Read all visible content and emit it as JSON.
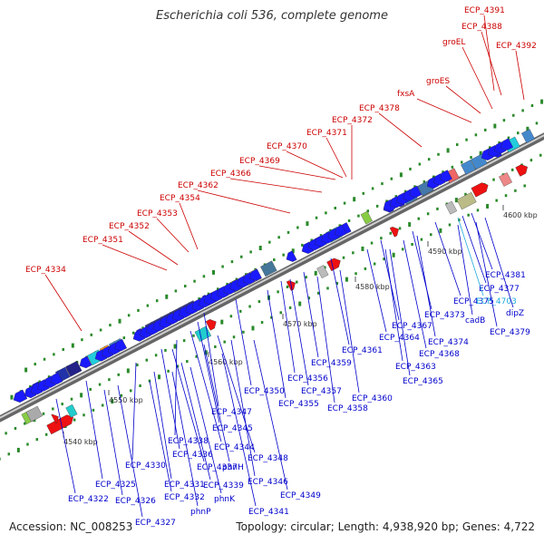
{
  "title": "Escherichia coli 536, complete genome",
  "footer": {
    "accession": "Accession: NC_008253",
    "topology": "Topology: circular; Length: 4,938,920 bp; Genes: 4,722"
  },
  "colors": {
    "forward_label": "#cc0000",
    "reverse_label": "#0000cc",
    "highlight_label": "#22aadd",
    "backbone": "#999999"
  },
  "ticks": [
    "4540 kbp",
    "4550 kbp",
    "4560 kbp",
    "4570 kbp",
    "4580 kbp",
    "4590 kbp",
    "4600 kbp"
  ],
  "forward_labels": [
    "ECP_4391",
    "ECP_4388",
    "ECP_4392",
    "groEL",
    "groES",
    "fxsA",
    "ECP_4378",
    "ECP_4372",
    "ECP_4371",
    "ECP_4370",
    "ECP_4369",
    "ECP_4366",
    "ECP_4362",
    "ECP_4354",
    "ECP_4353",
    "ECP_4352",
    "ECP_4351",
    "ECP_4334"
  ],
  "reverse_labels": [
    "ECP_4381",
    "ECP_4377",
    "ECP_4375",
    "ECP_4703",
    "dipZ",
    "ECP_4373",
    "cadB",
    "ECP_4379",
    "ECP_4367",
    "ECP_4374",
    "ECP_4364",
    "ECP_4368",
    "ECP_4361",
    "ECP_4363",
    "ECP_4359",
    "ECP_4365",
    "ECP_4356",
    "ECP_4357",
    "ECP_4360",
    "ECP_4350",
    "ECP_4355",
    "ECP_4358",
    "ECP_4347",
    "ECP_4345",
    "ECP_4338",
    "ECP_4344",
    "ECP_4336",
    "ECP_4348",
    "ECP_4330",
    "ECP_4337",
    "phnH",
    "ECP_4346",
    "ECP_4325",
    "ECP_4331",
    "ECP_4339",
    "ECP_4349",
    "ECP_4322",
    "ECP_4326",
    "ECP_4332",
    "phnK",
    "ECP_4341",
    "phnP",
    "ECP_4327"
  ]
}
